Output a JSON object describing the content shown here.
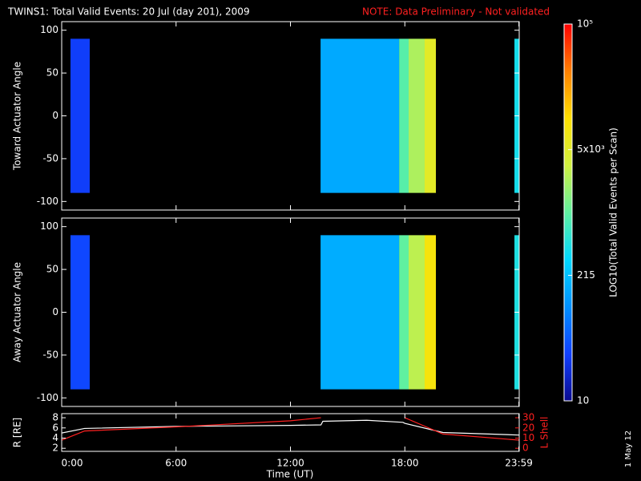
{
  "title": "TWINS1: Total Valid Events: 20 Jul (day 201), 2009",
  "note": "NOTE: Data Preliminary - Not validated",
  "date_stamp": "1 May 12",
  "x_label": "Time (UT)",
  "xlim": [
    0,
    24
  ],
  "xticks": [
    {
      "value": 0,
      "label": "0:00"
    },
    {
      "value": 6,
      "label": "6:00"
    },
    {
      "value": 12,
      "label": "12:00"
    },
    {
      "value": 18,
      "label": "18:00"
    },
    {
      "value": 23.983,
      "label": "23:59"
    }
  ],
  "colorbar": {
    "label": "LOG10(Total Valid Events per Scan)",
    "lim": [
      10,
      100000
    ],
    "log": true,
    "ticks": [
      {
        "value": 10,
        "label": "10"
      },
      {
        "value": 215,
        "label": "215"
      },
      {
        "value": 4642,
        "label": "5x10³"
      },
      {
        "value": 100000,
        "label": "10⁵"
      }
    ],
    "colormap": [
      "#0a0a90",
      "#1040ff",
      "#0090ff",
      "#00d8ff",
      "#60f0a0",
      "#d0f040",
      "#ffe000",
      "#ff8000",
      "#ff0000"
    ]
  },
  "chart_data": [
    {
      "type": "spectrogram",
      "y_label": "Toward Actuator Angle",
      "ylim": [
        -110,
        110
      ],
      "yticks": [
        -100,
        -50,
        0,
        50,
        100
      ],
      "angles": [
        -90,
        90
      ],
      "blocks": [
        {
          "t0": 0.46,
          "t1": 1.47,
          "level": 30
        },
        {
          "t0": 13.58,
          "t1": 17.7,
          "level": 150
        },
        {
          "t0": 17.7,
          "t1": 18.2,
          "level": 900
        },
        {
          "t0": 18.2,
          "t1": 19.04,
          "level": 2200
        },
        {
          "t0": 19.04,
          "t1": 19.63,
          "level": 5000
        },
        {
          "t0": 23.75,
          "t1": 24,
          "level": 400
        }
      ]
    },
    {
      "type": "spectrogram",
      "y_label": "Away Actuator Angle",
      "ylim": [
        -110,
        110
      ],
      "yticks": [
        -100,
        -50,
        0,
        50,
        100
      ],
      "angles": [
        -90,
        90
      ],
      "blocks": [
        {
          "t0": 0.46,
          "t1": 1.47,
          "level": 35
        },
        {
          "t0": 13.58,
          "t1": 17.7,
          "level": 160
        },
        {
          "t0": 17.7,
          "t1": 18.2,
          "level": 1000
        },
        {
          "t0": 18.2,
          "t1": 19.04,
          "level": 2600
        },
        {
          "t0": 19.04,
          "t1": 19.63,
          "level": 8000
        },
        {
          "t0": 23.75,
          "t1": 24,
          "level": 450
        }
      ]
    },
    {
      "type": "line",
      "ylim": [
        1.4,
        8.8
      ],
      "yticks": [
        2,
        4,
        6,
        8
      ],
      "y2lim": [
        -3,
        34
      ],
      "y2ticks": [
        0,
        10,
        20,
        30
      ],
      "x": [
        0,
        1.2,
        6,
        12,
        13.6,
        13.7,
        16,
        17.9,
        18,
        20,
        24
      ],
      "series": [
        {
          "name": "R [RE]",
          "color": "#ffffff",
          "values": [
            5.0,
            5.9,
            6.3,
            6.5,
            6.6,
            7.3,
            7.5,
            7.1,
            6.9,
            5.1,
            4.6
          ]
        },
        {
          "name": "L Shell",
          "color": "#ff2020",
          "axis": "y2",
          "values": [
            8,
            17,
            21,
            27,
            30,
            null,
            null,
            null,
            30,
            14,
            8
          ]
        }
      ]
    }
  ]
}
